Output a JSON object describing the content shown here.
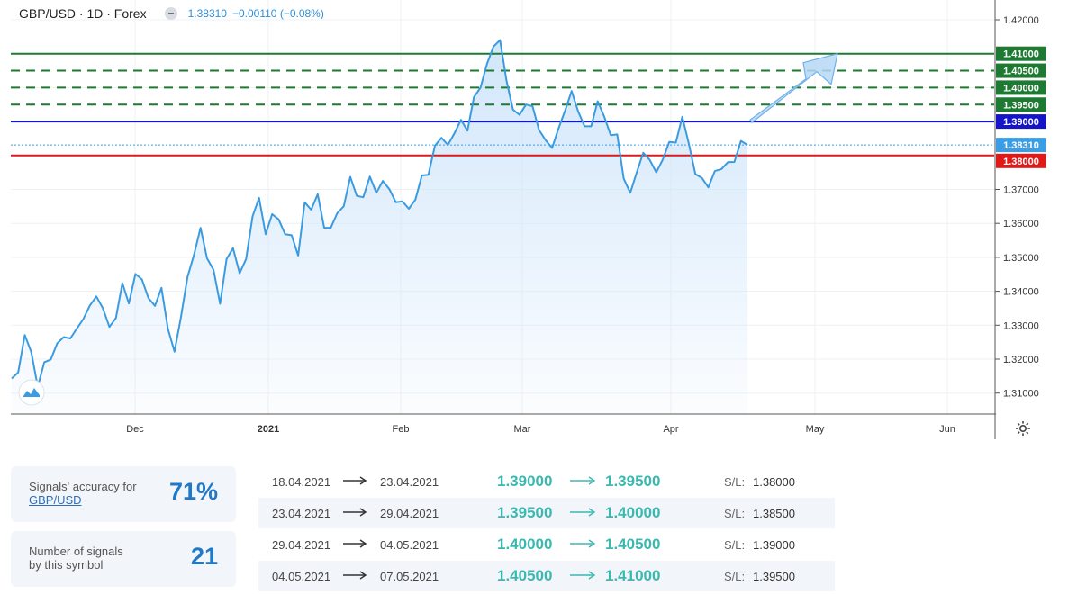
{
  "header": {
    "symbol": "GBP/USD · 1D · Forex",
    "price": "1.38310",
    "change": "−0.00110 (−0.08%)"
  },
  "colors": {
    "price_line": "#3b9be0",
    "area_fill": "#d5e9fb",
    "target_green": "#1e7a32",
    "entry_blue": "#1414c8",
    "stop_red": "#e01818",
    "current_price_badge": "#3a9ee6",
    "accent_teal": "#3bb8b0"
  },
  "chart_data": {
    "type": "line",
    "symbol": "GBP/USD",
    "interval": "1D",
    "x_tick_labels": [
      "Dec",
      "2021",
      "Feb",
      "Mar",
      "Apr",
      "May",
      "Jun"
    ],
    "y_tick_labels": [
      "1.31000",
      "1.32000",
      "1.33000",
      "1.34000",
      "1.35000",
      "1.36000",
      "1.37000",
      "1.42000"
    ],
    "ylim": [
      1.3035,
      1.4252
    ],
    "grid": true,
    "series": [
      {
        "values": [
          1.3143,
          1.3161,
          1.3271,
          1.3221,
          1.3119,
          1.3191,
          1.3199,
          1.3247,
          1.3265,
          1.3261,
          1.329,
          1.3318,
          1.3358,
          1.3385,
          1.335,
          1.3295,
          1.3321,
          1.3424,
          1.3364,
          1.3451,
          1.3435,
          1.338,
          1.3357,
          1.341,
          1.3289,
          1.3222,
          1.3325,
          1.3442,
          1.3507,
          1.3587,
          1.3497,
          1.3463,
          1.3363,
          1.3495,
          1.3527,
          1.3453,
          1.3495,
          1.3621,
          1.3675,
          1.3568,
          1.3627,
          1.3612,
          1.3568,
          1.3565,
          1.3505,
          1.3662,
          1.364,
          1.3686,
          1.3587,
          1.3587,
          1.363,
          1.365,
          1.3737,
          1.3681,
          1.3677,
          1.3738,
          1.369,
          1.3725,
          1.3701,
          1.3662,
          1.3665,
          1.3643,
          1.367,
          1.3741,
          1.3743,
          1.3829,
          1.3852,
          1.3831,
          1.3865,
          1.3905,
          1.3873,
          1.3972,
          1.4,
          1.407,
          1.4121,
          1.414,
          1.402,
          1.3935,
          1.392,
          1.395,
          1.3945,
          1.3875,
          1.3845,
          1.3822,
          1.388,
          1.3933,
          1.399,
          1.393,
          1.3886,
          1.3886,
          1.396,
          1.3915,
          1.386,
          1.3862,
          1.3732,
          1.369,
          1.375,
          1.3808,
          1.3787,
          1.375,
          1.3788,
          1.384,
          1.3838,
          1.3914,
          1.3835,
          1.3745,
          1.3734,
          1.3706,
          1.3754,
          1.376,
          1.378,
          1.3781,
          1.3843,
          1.3831
        ]
      }
    ],
    "levels": [
      {
        "value": 1.41,
        "label": "1.41000",
        "style": "solid",
        "color": "#1e7a32"
      },
      {
        "value": 1.405,
        "label": "1.40500",
        "style": "dashed",
        "color": "#1e7a32"
      },
      {
        "value": 1.4,
        "label": "1.40000",
        "style": "dashed",
        "color": "#1e7a32"
      },
      {
        "value": 1.395,
        "label": "1.39500",
        "style": "dashed",
        "color": "#1e7a32"
      },
      {
        "value": 1.39,
        "label": "1.39000",
        "style": "solid",
        "color": "#1414c8"
      },
      {
        "value": 1.3831,
        "label": "1.38310",
        "style": "dotted",
        "color": "#3a9ee6"
      },
      {
        "value": 1.38,
        "label": "1.38000",
        "style": "solid",
        "color": "#e01818"
      }
    ],
    "forecast_arrow": {
      "from": 1.3905,
      "to": 1.41,
      "direction": "up"
    }
  },
  "stats": {
    "accuracy_label": "Signals' accuracy for",
    "accuracy_symbol": "GBP/USD",
    "accuracy_value": "71%",
    "count_label_1": "Number of signals",
    "count_label_2": "by this symbol",
    "count_value": "21"
  },
  "signals": [
    {
      "from_date": "18.04.2021",
      "to_date": "23.04.2021",
      "entry": "1.39000",
      "target": "1.39500",
      "sl_label": "S/L:",
      "sl_value": "1.38000"
    },
    {
      "from_date": "23.04.2021",
      "to_date": "29.04.2021",
      "entry": "1.39500",
      "target": "1.40000",
      "sl_label": "S/L:",
      "sl_value": "1.38500"
    },
    {
      "from_date": "29.04.2021",
      "to_date": "04.05.2021",
      "entry": "1.40000",
      "target": "1.40500",
      "sl_label": "S/L:",
      "sl_value": "1.39000"
    },
    {
      "from_date": "04.05.2021",
      "to_date": "07.05.2021",
      "entry": "1.40500",
      "target": "1.41000",
      "sl_label": "S/L:",
      "sl_value": "1.39500"
    }
  ]
}
